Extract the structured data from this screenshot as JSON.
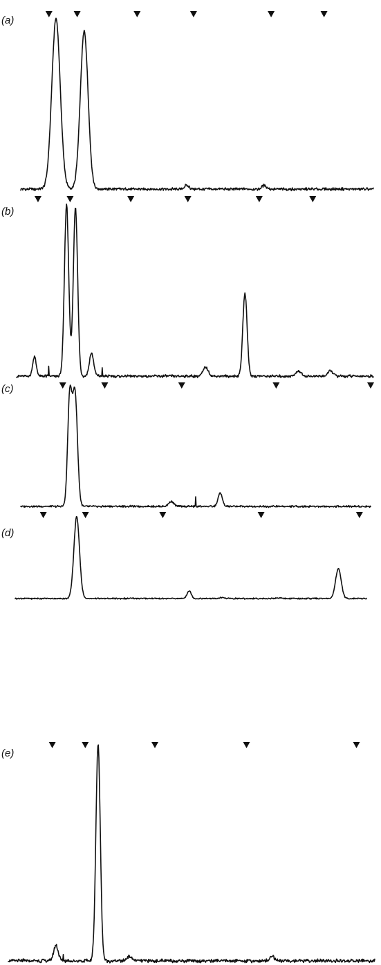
{
  "colors": {
    "ink": "#111111",
    "background": "#ffffff"
  },
  "chart_data": [
    {
      "type": "line",
      "panel": "(a)",
      "markers": [
        0.08,
        0.16,
        0.33,
        0.49,
        0.71,
        0.86
      ],
      "baseline_peaks": [
        [
          0.47,
          0.02
        ],
        [
          0.69,
          0.02
        ]
      ],
      "peaks": [
        {
          "x": 0.1,
          "height": 0.95,
          "width": 0.012
        },
        {
          "x": 0.18,
          "height": 0.88,
          "width": 0.011
        }
      ]
    },
    {
      "type": "line",
      "panel": "(b)",
      "markers": [
        0.06,
        0.15,
        0.32,
        0.48,
        0.68,
        0.83
      ],
      "baseline_peaks": [
        [
          0.53,
          0.05
        ],
        [
          0.88,
          0.03
        ],
        [
          0.79,
          0.03
        ]
      ],
      "peaks": [
        {
          "x": 0.05,
          "height": 0.11,
          "width": 0.005
        },
        {
          "x": 0.14,
          "height": 0.97,
          "width": 0.006
        },
        {
          "x": 0.165,
          "height": 0.96,
          "width": 0.006
        },
        {
          "x": 0.21,
          "height": 0.13,
          "width": 0.006
        },
        {
          "x": 0.64,
          "height": 0.47,
          "width": 0.006
        }
      ],
      "spikes": [
        [
          0.09,
          0.06
        ],
        [
          0.24,
          0.05
        ]
      ]
    },
    {
      "type": "line",
      "panel": "(c)",
      "markers": [
        0.12,
        0.24,
        0.46,
        0.73,
        1.0
      ],
      "baseline_peaks": [
        [
          0.43,
          0.04
        ]
      ],
      "peaks": [
        {
          "x": 0.14,
          "height": 0.88,
          "width": 0.006
        },
        {
          "x": 0.155,
          "height": 0.93,
          "width": 0.007
        },
        {
          "x": 0.57,
          "height": 0.11,
          "width": 0.006
        }
      ],
      "spikes": [
        [
          0.5,
          0.08
        ]
      ]
    },
    {
      "type": "line",
      "panel": "(d)",
      "markers": [
        0.08,
        0.2,
        0.42,
        0.7,
        0.98
      ],
      "baseline_peaks": [
        [
          0.59,
          0.01
        ],
        [
          0.75,
          0.01
        ]
      ],
      "peaks": [
        {
          "x": 0.175,
          "height": 0.97,
          "width": 0.008
        },
        {
          "x": 0.495,
          "height": 0.09,
          "width": 0.006
        },
        {
          "x": 0.92,
          "height": 0.35,
          "width": 0.008
        }
      ]
    },
    {
      "type": "line",
      "panel": "(e)",
      "markers": [
        0.12,
        0.21,
        0.4,
        0.65,
        0.95
      ],
      "baseline_peaks": [
        [
          0.33,
          0.02
        ],
        [
          0.72,
          0.02
        ]
      ],
      "peaks": [
        {
          "x": 0.13,
          "height": 0.07,
          "width": 0.006
        },
        {
          "x": 0.245,
          "height": 0.97,
          "width": 0.006
        }
      ],
      "spikes": [
        [
          0.15,
          0.03
        ]
      ]
    }
  ]
}
